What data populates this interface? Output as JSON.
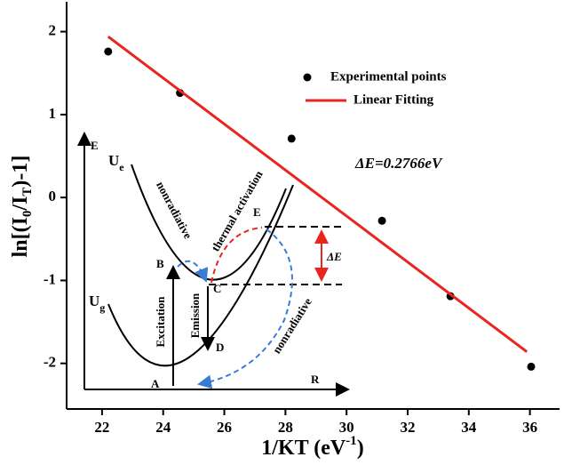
{
  "chart_data": {
    "type": "scatter",
    "xlabel": [
      "1/KT (eV",
      "-1",
      ")"
    ],
    "ylabel": [
      "ln[(I",
      "0",
      "/I",
      "T",
      ")-1]"
    ],
    "xlim": [
      20.84,
      36.97
    ],
    "ylim": [
      -2.55,
      2.36
    ],
    "xticks": [
      22,
      24,
      26,
      28,
      30,
      32,
      34,
      36
    ],
    "yticks": [
      -2,
      -1,
      0,
      1,
      2
    ],
    "series": [
      {
        "name": "Experimental points",
        "type": "scatter",
        "color": "#000000",
        "x": [
          22.2,
          24.55,
          28.2,
          31.16,
          33.4,
          36.04
        ],
        "values": [
          1.76,
          1.26,
          0.71,
          -0.28,
          -1.19,
          -2.04
        ]
      },
      {
        "name": "Linear Fitting",
        "type": "line",
        "color": "#e8251f",
        "x": [
          22.2,
          35.9
        ],
        "values": [
          1.94,
          -1.86
        ]
      }
    ],
    "annotation": "ΔE=0.2766eV",
    "inset": {
      "e_axis": "E",
      "r_axis": "R",
      "ue": [
        "U",
        "e"
      ],
      "ug": [
        "U",
        "g"
      ],
      "a": "A",
      "b": "B",
      "c": "C",
      "d": "D",
      "e": "E",
      "delta_e": "ΔE",
      "nonradiative_1": "nonradiative",
      "thermal": "thermal activation",
      "excitation": "Excitation",
      "emission": "Emission",
      "nonradiative_2": "nonradiative"
    }
  }
}
